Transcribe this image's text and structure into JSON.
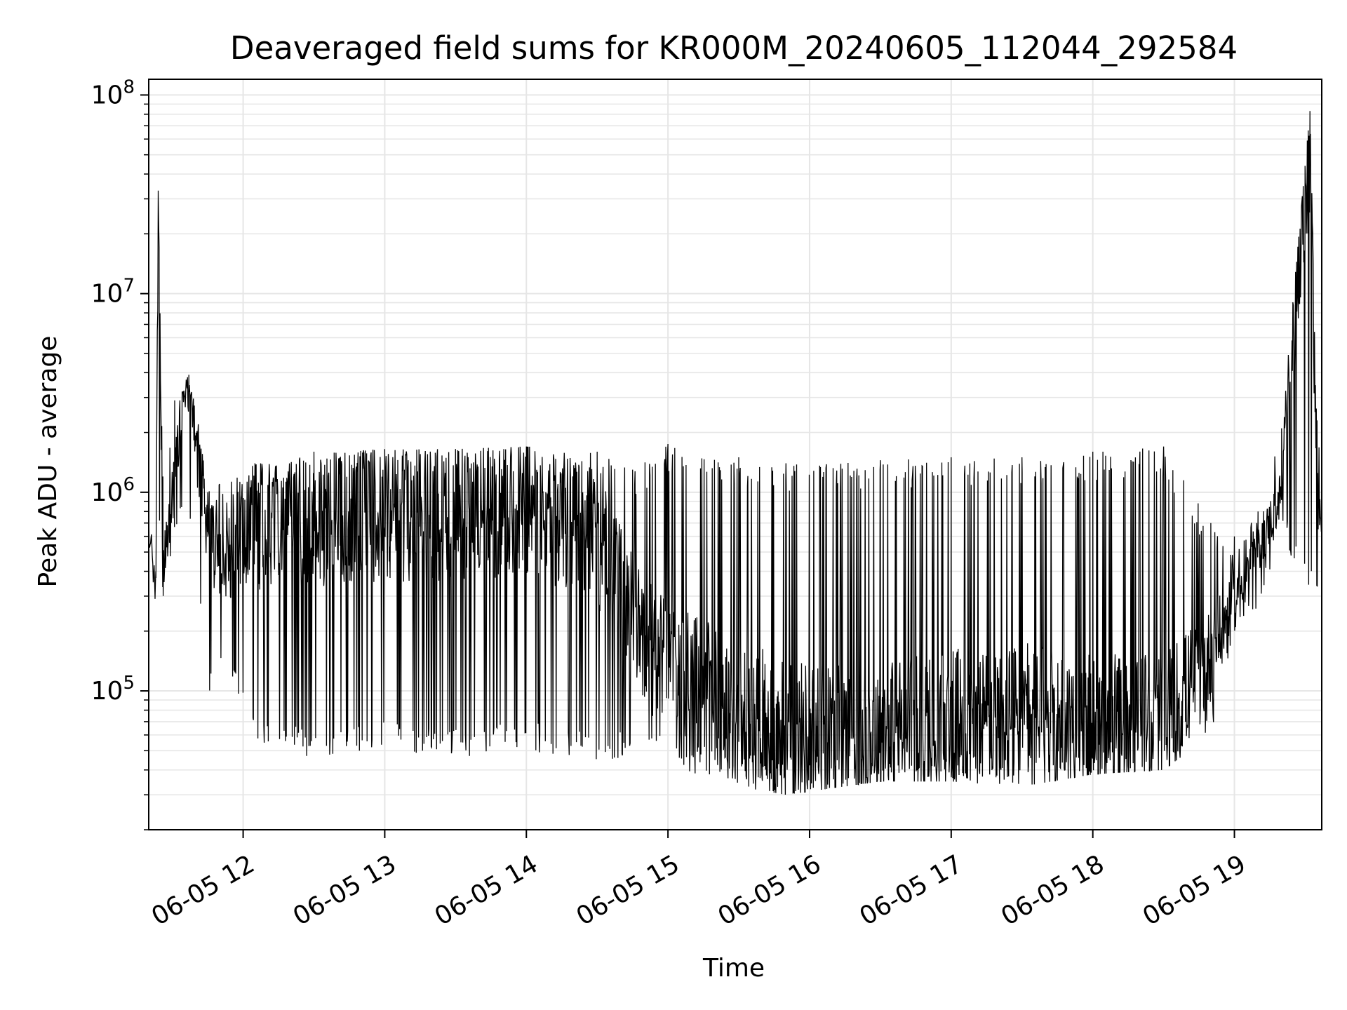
{
  "chart_data": {
    "type": "line",
    "title": "Deaveraged field sums for KR000M_20240605_112044_292584",
    "xlabel": "Time",
    "ylabel": "Peak ADU - average",
    "yscale": "log",
    "ylim": [
      20000,
      120000000
    ],
    "xlim": [
      "2024-06-05 11:20",
      "2024-06-05 19:37"
    ],
    "grid": true,
    "x_ticks": [
      "06-05 12",
      "06-05 13",
      "06-05 14",
      "06-05 15",
      "06-05 16",
      "06-05 17",
      "06-05 18",
      "06-05 19"
    ],
    "y_ticks": [
      {
        "base": "10",
        "exp": "5",
        "value": 100000
      },
      {
        "base": "10",
        "exp": "6",
        "value": 1000000
      },
      {
        "base": "10",
        "exp": "7",
        "value": 10000000
      },
      {
        "base": "10",
        "exp": "8",
        "value": 100000000
      }
    ],
    "line_color": "#000000",
    "series": [
      {
        "x": [
          "2024-06-05 11:20",
          "2024-06-05 11:23",
          "2024-06-05 11:24",
          "2024-06-05 11:26",
          "2024-06-05 11:31",
          "2024-06-05 11:37",
          "2024-06-05 11:41",
          "2024-06-05 11:45",
          "2024-06-05 11:50",
          "2024-06-05 12:05",
          "2024-06-05 12:30",
          "2024-06-05 13:00",
          "2024-06-05 13:30",
          "2024-06-05 14:00",
          "2024-06-05 14:30",
          "2024-06-05 14:45",
          "2024-06-05 15:00",
          "2024-06-05 15:30",
          "2024-06-05 15:50",
          "2024-06-05 16:30",
          "2024-06-05 17:00",
          "2024-06-05 17:30",
          "2024-06-05 18:00",
          "2024-06-05 18:30",
          "2024-06-05 18:50",
          "2024-06-05 19:00",
          "2024-06-05 19:10",
          "2024-06-05 19:20",
          "2024-06-05 19:32",
          "2024-06-05 19:35",
          "2024-06-05 19:37"
        ],
        "y": [
          700000,
          320000,
          33000000,
          400000,
          1200000,
          3900000,
          1500000,
          700000,
          400000,
          650000,
          700000,
          750000,
          800000,
          850000,
          600000,
          250000,
          120000,
          80000,
          60000,
          65000,
          70000,
          75000,
          65000,
          70000,
          150000,
          300000,
          500000,
          1000000,
          83000000,
          900000,
          700000
        ],
        "band_high": [
          900000,
          400000,
          33000000,
          1200000,
          2900000,
          3900000,
          2200000,
          1000000,
          1100000,
          1400000,
          1600000,
          1650000,
          1650000,
          1700000,
          1600000,
          1300000,
          1750000,
          1500000,
          1400000,
          1450000,
          1500000,
          1500000,
          1600000,
          1700000,
          700000,
          600000,
          800000,
          2100000,
          83000000,
          2300000,
          1600000
        ],
        "band_low": [
          300000,
          260000,
          1000000,
          270000,
          650000,
          600000,
          300000,
          90000,
          150000,
          55000,
          45000,
          50000,
          45000,
          50000,
          45000,
          45000,
          42000,
          33000,
          30000,
          35000,
          35000,
          33000,
          38000,
          40000,
          60000,
          200000,
          250000,
          600000,
          300000,
          300000,
          240000
        ]
      }
    ]
  }
}
